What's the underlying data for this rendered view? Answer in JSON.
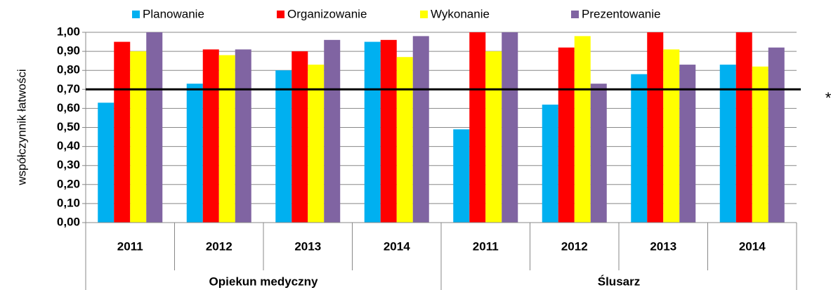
{
  "chart_data": {
    "type": "bar",
    "y_label": "współczynnik łatwości",
    "groups": [
      {
        "name": "Opiekun medyczny",
        "categories": [
          "2011",
          "2012",
          "2013",
          "2014"
        ]
      },
      {
        "name": "Ślusarz",
        "categories": [
          "2011",
          "2012",
          "2013",
          "2014"
        ]
      }
    ],
    "series": [
      {
        "name": "Planowanie",
        "color": "#00b0f0",
        "values": [
          0.63,
          0.73,
          0.8,
          0.95,
          0.49,
          0.62,
          0.78,
          0.83
        ]
      },
      {
        "name": "Organizowanie",
        "color": "#ff0000",
        "values": [
          0.95,
          0.91,
          0.9,
          0.96,
          1.0,
          0.92,
          1.0,
          1.0
        ]
      },
      {
        "name": "Wykonanie",
        "color": "#ffff00",
        "values": [
          0.9,
          0.88,
          0.83,
          0.87,
          0.9,
          0.98,
          0.91,
          0.82
        ]
      },
      {
        "name": "Prezentowanie",
        "color": "#8064a2",
        "values": [
          1.0,
          0.91,
          0.96,
          0.98,
          1.0,
          0.73,
          0.83,
          0.92
        ]
      }
    ],
    "ylim": [
      0,
      1
    ],
    "yticks": [
      {
        "value": 0,
        "label": "0,00"
      },
      {
        "value": 0.1,
        "label": "0,10"
      },
      {
        "value": 0.2,
        "label": "0,20"
      },
      {
        "value": 0.3,
        "label": "0,30"
      },
      {
        "value": 0.4,
        "label": "0,40"
      },
      {
        "value": 0.5,
        "label": "0,50"
      },
      {
        "value": 0.6,
        "label": "0,60"
      },
      {
        "value": 0.7,
        "label": "0,70"
      },
      {
        "value": 0.8,
        "label": "0,80"
      },
      {
        "value": 0.9,
        "label": "0,90"
      },
      {
        "value": 1,
        "label": "1,00"
      }
    ],
    "grid": true,
    "reference_line": {
      "value": 0.7,
      "label": "*"
    }
  }
}
